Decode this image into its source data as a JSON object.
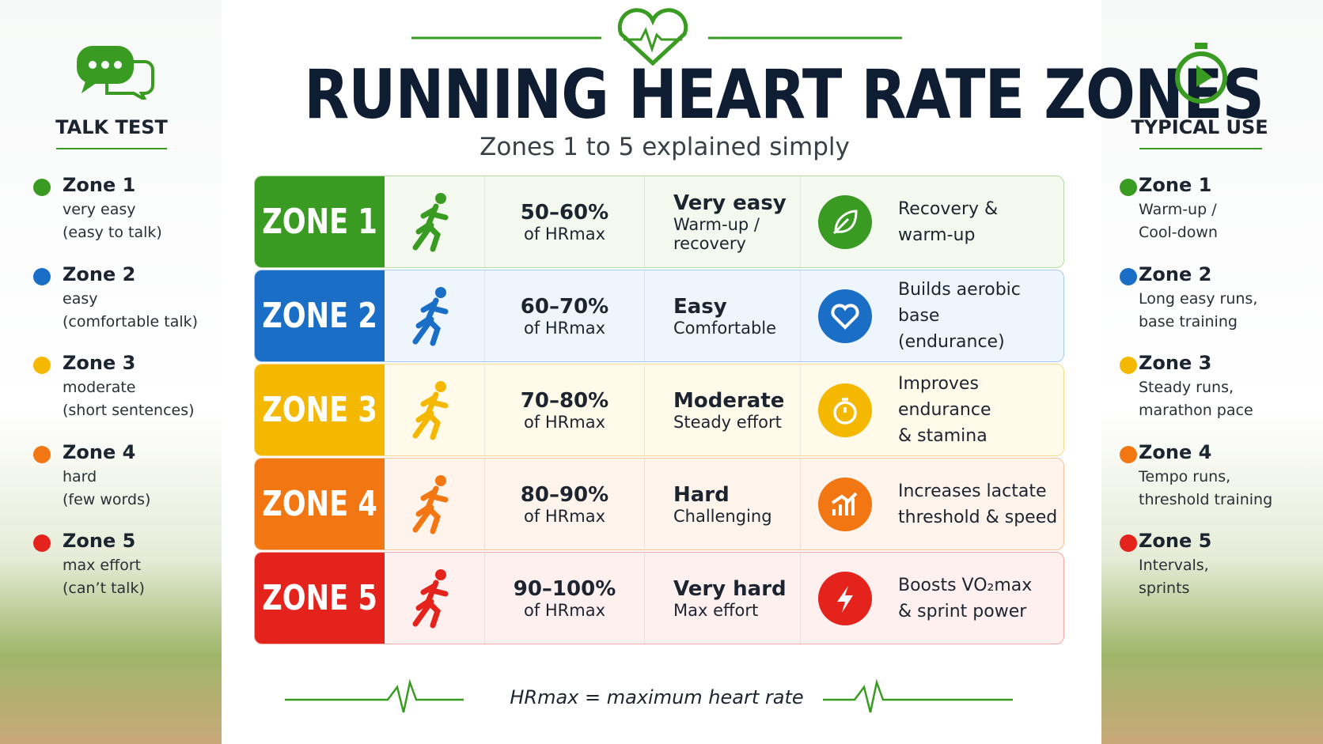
{
  "header": {
    "title": "RUNNING HEART RATE ZONES",
    "subtitle": "Zones 1 to 5 explained simply"
  },
  "talk_test": {
    "title": "TALK TEST",
    "items": [
      {
        "zone": "Zone 1",
        "lines": [
          "very easy",
          "(easy to talk)"
        ]
      },
      {
        "zone": "Zone 2",
        "lines": [
          "easy",
          "(comfortable talk)"
        ]
      },
      {
        "zone": "Zone 3",
        "lines": [
          "moderate",
          "(short sentences)"
        ]
      },
      {
        "zone": "Zone 4",
        "lines": [
          "hard",
          "(few words)"
        ]
      },
      {
        "zone": "Zone 5",
        "lines": [
          "max effort",
          "(can’t talk)"
        ]
      }
    ]
  },
  "typical_use": {
    "title": "TYPICAL USE",
    "items": [
      {
        "zone": "Zone 1",
        "lines": [
          "Warm-up /",
          "Cool-down"
        ]
      },
      {
        "zone": "Zone 2",
        "lines": [
          "Long easy runs,",
          "base training"
        ]
      },
      {
        "zone": "Zone 3",
        "lines": [
          "Steady runs,",
          "marathon pace"
        ]
      },
      {
        "zone": "Zone 4",
        "lines": [
          "Tempo runs,",
          "threshold training"
        ]
      },
      {
        "zone": "Zone 5",
        "lines": [
          "Intervals,",
          "sprints"
        ]
      }
    ]
  },
  "table": {
    "rows": [
      {
        "label": "ZONE 1",
        "range": "50–60%",
        "unit": "of HRmax",
        "intensity": "Very easy",
        "effort": [
          "Warm-up /",
          "recovery"
        ],
        "use": [
          "Recovery &",
          "warm-up"
        ]
      },
      {
        "label": "ZONE 2",
        "range": "60–70%",
        "unit": "of HRmax",
        "intensity": "Easy",
        "effort": [
          "Comfortable"
        ],
        "use": [
          "Builds aerobic base",
          "(endurance)"
        ]
      },
      {
        "label": "ZONE 3",
        "range": "70–80%",
        "unit": "of HRmax",
        "intensity": "Moderate",
        "effort": [
          "Steady effort"
        ],
        "use": [
          "Improves endurance",
          "& stamina"
        ]
      },
      {
        "label": "ZONE 4",
        "range": "80–90%",
        "unit": "of HRmax",
        "intensity": "Hard",
        "effort": [
          "Challenging"
        ],
        "use": [
          "Increases lactate",
          "threshold & speed"
        ]
      },
      {
        "label": "ZONE 5",
        "range": "90–100%",
        "unit": "of HRmax",
        "intensity": "Very hard",
        "effort": [
          "Max effort"
        ],
        "use": [
          "Boosts VO₂max",
          "& sprint power"
        ]
      }
    ]
  },
  "footer": {
    "note": "HRmax = maximum heart rate"
  }
}
